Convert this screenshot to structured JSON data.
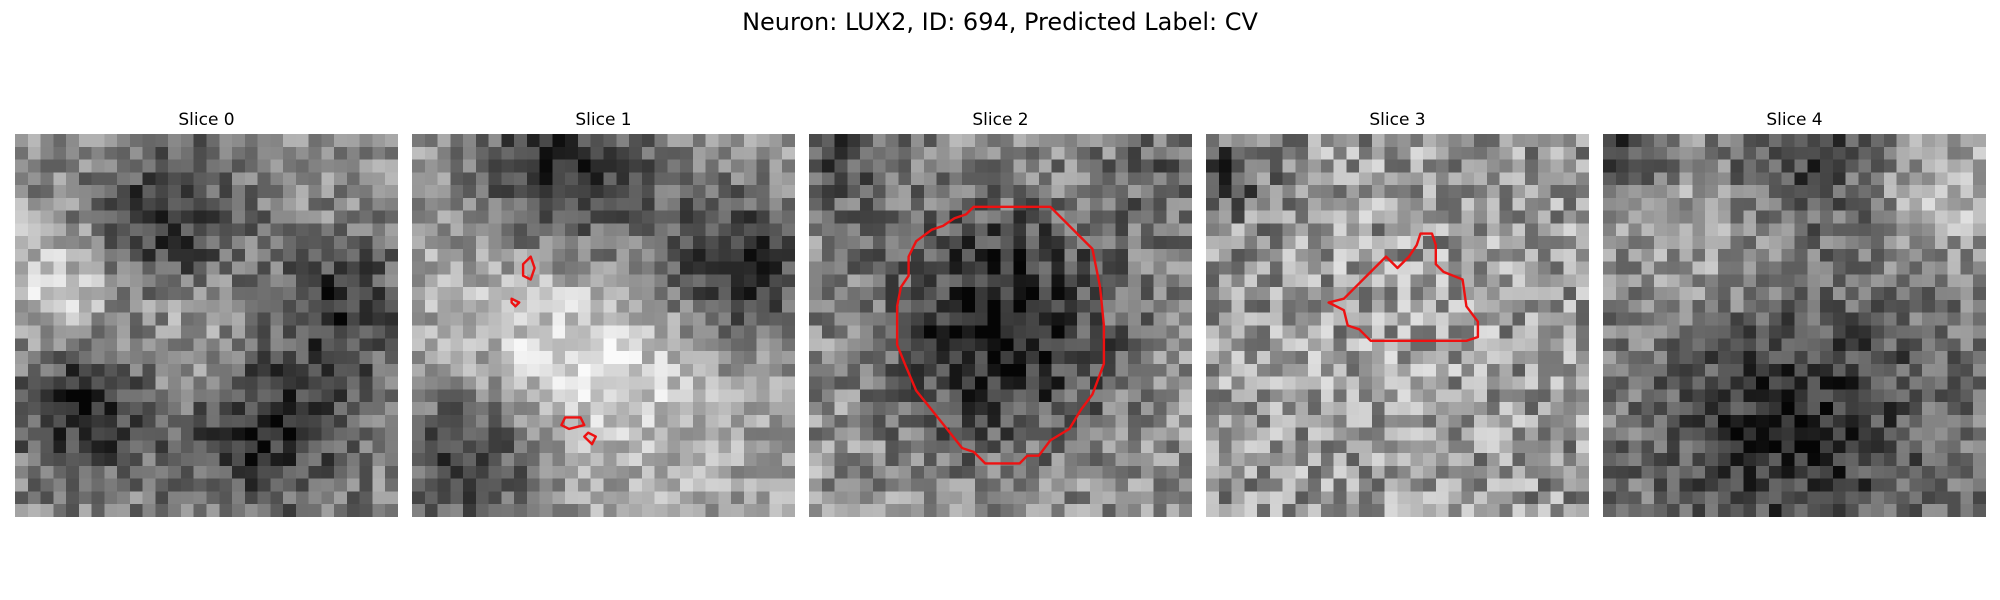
{
  "figure": {
    "title": "Neuron: LUX2, ID: 694, Predicted Label: CV",
    "contour_color": "#ee1111",
    "grid_size": 30
  },
  "panels": [
    {
      "title": "Slice 0",
      "field": {
        "base": 0.55,
        "noise": 0.2,
        "blobs": [
          [
            0.4,
            0.25,
            0.15,
            -0.4
          ],
          [
            0.85,
            0.45,
            0.12,
            -0.35
          ],
          [
            0.2,
            0.7,
            0.14,
            -0.45
          ],
          [
            0.65,
            0.75,
            0.16,
            -0.45
          ],
          [
            0.45,
            0.55,
            0.18,
            0.25
          ],
          [
            0.1,
            0.4,
            0.12,
            0.3
          ]
        ]
      },
      "contours": []
    },
    {
      "title": "Slice 1",
      "field": {
        "base": 0.62,
        "noise": 0.18,
        "blobs": [
          [
            0.4,
            0.1,
            0.18,
            -0.45
          ],
          [
            0.85,
            0.35,
            0.15,
            -0.45
          ],
          [
            0.15,
            0.85,
            0.14,
            -0.4
          ],
          [
            0.35,
            0.5,
            0.2,
            0.2
          ],
          [
            0.6,
            0.65,
            0.18,
            0.15
          ]
        ]
      },
      "contours": [
        [
          [
            0.29,
            0.34
          ],
          [
            0.31,
            0.32
          ],
          [
            0.32,
            0.35
          ],
          [
            0.31,
            0.38
          ],
          [
            0.29,
            0.37
          ],
          [
            0.29,
            0.34
          ]
        ],
        [
          [
            0.26,
            0.43
          ],
          [
            0.28,
            0.44
          ],
          [
            0.27,
            0.45
          ],
          [
            0.26,
            0.44
          ]
        ],
        [
          [
            0.4,
            0.74
          ],
          [
            0.44,
            0.74
          ],
          [
            0.45,
            0.76
          ],
          [
            0.41,
            0.77
          ],
          [
            0.39,
            0.76
          ]
        ],
        [
          [
            0.46,
            0.78
          ],
          [
            0.48,
            0.79
          ],
          [
            0.47,
            0.81
          ],
          [
            0.45,
            0.79
          ]
        ]
      ]
    },
    {
      "title": "Slice 2",
      "field": {
        "base": 0.6,
        "noise": 0.22,
        "blobs": [
          [
            0.5,
            0.5,
            0.23,
            -0.5
          ],
          [
            0.05,
            0.05,
            0.12,
            -0.3
          ],
          [
            0.95,
            0.1,
            0.12,
            -0.2
          ]
        ]
      },
      "contours": [
        [
          [
            0.43,
            0.19
          ],
          [
            0.63,
            0.19
          ],
          [
            0.74,
            0.3
          ],
          [
            0.76,
            0.4
          ],
          [
            0.77,
            0.5
          ],
          [
            0.77,
            0.6
          ],
          [
            0.74,
            0.68
          ],
          [
            0.71,
            0.72
          ],
          [
            0.68,
            0.77
          ],
          [
            0.63,
            0.8
          ],
          [
            0.6,
            0.84
          ],
          [
            0.57,
            0.84
          ],
          [
            0.55,
            0.86
          ],
          [
            0.46,
            0.86
          ],
          [
            0.43,
            0.83
          ],
          [
            0.4,
            0.82
          ],
          [
            0.36,
            0.77
          ],
          [
            0.32,
            0.72
          ],
          [
            0.28,
            0.67
          ],
          [
            0.25,
            0.6
          ],
          [
            0.23,
            0.55
          ],
          [
            0.23,
            0.45
          ],
          [
            0.24,
            0.4
          ],
          [
            0.26,
            0.37
          ],
          [
            0.26,
            0.32
          ],
          [
            0.28,
            0.28
          ],
          [
            0.32,
            0.25
          ],
          [
            0.35,
            0.24
          ],
          [
            0.38,
            0.22
          ],
          [
            0.41,
            0.21
          ]
        ]
      ]
    },
    {
      "title": "Slice 3",
      "field": {
        "base": 0.58,
        "noise": 0.26,
        "blobs": [
          [
            0.05,
            0.1,
            0.08,
            -0.3
          ],
          [
            0.5,
            0.5,
            0.3,
            0.05
          ]
        ]
      },
      "contours": [
        [
          [
            0.36,
            0.43
          ],
          [
            0.43,
            0.36
          ],
          [
            0.47,
            0.32
          ],
          [
            0.5,
            0.35
          ],
          [
            0.53,
            0.32
          ],
          [
            0.55,
            0.29
          ],
          [
            0.56,
            0.26
          ],
          [
            0.59,
            0.26
          ],
          [
            0.6,
            0.29
          ],
          [
            0.6,
            0.34
          ],
          [
            0.62,
            0.36
          ],
          [
            0.67,
            0.38
          ],
          [
            0.68,
            0.45
          ],
          [
            0.71,
            0.49
          ],
          [
            0.71,
            0.53
          ],
          [
            0.68,
            0.54
          ],
          [
            0.43,
            0.54
          ],
          [
            0.4,
            0.51
          ],
          [
            0.37,
            0.5
          ],
          [
            0.36,
            0.46
          ],
          [
            0.32,
            0.44
          ]
        ]
      ]
    },
    {
      "title": "Slice 4",
      "field": {
        "base": 0.5,
        "noise": 0.2,
        "blobs": [
          [
            0.5,
            0.75,
            0.25,
            -0.35
          ],
          [
            0.3,
            0.25,
            0.2,
            0.2
          ],
          [
            0.9,
            0.15,
            0.12,
            0.25
          ],
          [
            0.5,
            0.05,
            0.15,
            -0.3
          ],
          [
            0.05,
            0.05,
            0.08,
            -0.3
          ]
        ]
      },
      "contours": []
    }
  ]
}
